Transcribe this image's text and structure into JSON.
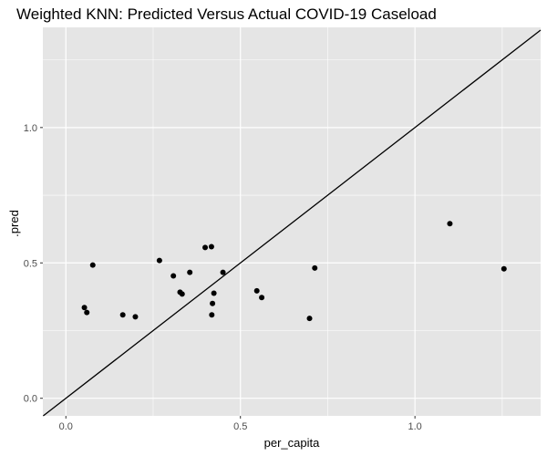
{
  "chart_data": {
    "type": "scatter",
    "title": "Weighted KNN: Predicted Versus Actual COVID-19 Caseload",
    "xlabel": "per_capita",
    "ylabel": ".pred",
    "xlim": [
      -0.066,
      1.36
    ],
    "ylim": [
      -0.065,
      1.37
    ],
    "x_ticks": [
      0.0,
      0.5,
      1.0
    ],
    "x_tick_labels": [
      "0.0",
      "0.5",
      "1.0"
    ],
    "y_ticks": [
      0.0,
      0.5,
      1.0
    ],
    "y_tick_labels": [
      "0.0",
      "0.5",
      "1.0"
    ],
    "grid": true,
    "background": "#e5e5e5",
    "gridline_color": "#ffffff",
    "point_color": "#000000",
    "reference_line": {
      "slope": 1,
      "intercept": 0,
      "color": "#000000"
    },
    "points": [
      {
        "x": 0.053,
        "y": 0.335
      },
      {
        "x": 0.06,
        "y": 0.317
      },
      {
        "x": 0.077,
        "y": 0.492
      },
      {
        "x": 0.163,
        "y": 0.308
      },
      {
        "x": 0.199,
        "y": 0.301
      },
      {
        "x": 0.268,
        "y": 0.509
      },
      {
        "x": 0.308,
        "y": 0.452
      },
      {
        "x": 0.327,
        "y": 0.392
      },
      {
        "x": 0.333,
        "y": 0.385
      },
      {
        "x": 0.355,
        "y": 0.465
      },
      {
        "x": 0.399,
        "y": 0.557
      },
      {
        "x": 0.417,
        "y": 0.56
      },
      {
        "x": 0.418,
        "y": 0.308
      },
      {
        "x": 0.42,
        "y": 0.35
      },
      {
        "x": 0.424,
        "y": 0.388
      },
      {
        "x": 0.45,
        "y": 0.465
      },
      {
        "x": 0.547,
        "y": 0.397
      },
      {
        "x": 0.561,
        "y": 0.372
      },
      {
        "x": 0.698,
        "y": 0.295
      },
      {
        "x": 0.713,
        "y": 0.481
      },
      {
        "x": 1.1,
        "y": 0.645
      },
      {
        "x": 1.255,
        "y": 0.478
      }
    ]
  }
}
